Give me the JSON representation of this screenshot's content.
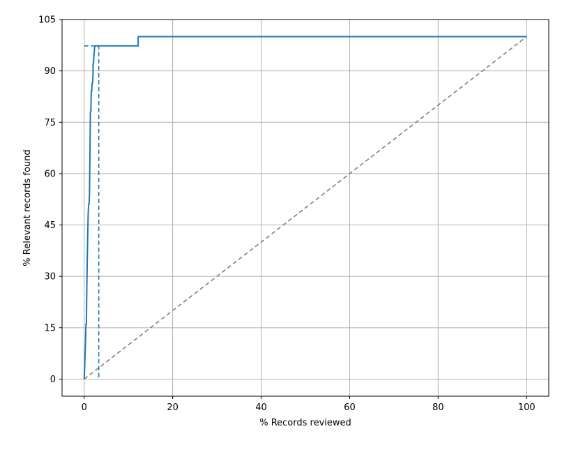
{
  "chart_data": {
    "type": "line",
    "title": "",
    "xlabel": "% Records reviewed",
    "ylabel": "% Relevant records found",
    "xlim": [
      -5,
      105
    ],
    "ylim": [
      -5,
      105
    ],
    "xticks": [
      0,
      20,
      40,
      60,
      80,
      100
    ],
    "yticks": [
      0,
      15,
      30,
      45,
      60,
      75,
      90,
      105
    ],
    "grid": true,
    "legend": "none",
    "colors": {
      "recall": "#1f77b4",
      "random": "#7f7f7f",
      "grid": "#b0b0b0"
    },
    "series": [
      {
        "style": "solid",
        "x": [
          0,
          0.1,
          0.2,
          0.3,
          0.4,
          0.5,
          0.6,
          0.7,
          0.8,
          0.9,
          1.0,
          1.1,
          1.2,
          1.3,
          1.4,
          1.5,
          1.6,
          1.7,
          1.8,
          1.9,
          2.0,
          2.0,
          2.1,
          2.2,
          2.2,
          2.4,
          2.4,
          2.6,
          2.7,
          2.7,
          2.8,
          3.0,
          3.0,
          3.1,
          3.2,
          3.3,
          12.2,
          12.2,
          100
        ],
        "y": [
          0,
          3,
          7,
          11,
          16,
          16,
          27,
          35,
          42,
          48,
          51,
          51,
          54,
          65,
          78,
          78,
          84,
          84,
          86.5,
          86.5,
          89,
          92,
          92,
          94.5,
          94.5,
          97.3,
          97.3,
          97.3,
          97.3,
          97.3,
          97.3,
          97.3,
          97.3,
          97.3,
          97.3,
          97.3,
          97.3,
          100,
          100
        ]
      },
      {
        "style": "dashed",
        "x": [
          0,
          3.3,
          3.3,
          3.3
        ],
        "y": [
          97.3,
          97.3,
          97.3,
          0
        ]
      },
      {
        "style": "dashed-gray",
        "x": [
          0,
          100
        ],
        "y": [
          0,
          100
        ]
      }
    ]
  }
}
